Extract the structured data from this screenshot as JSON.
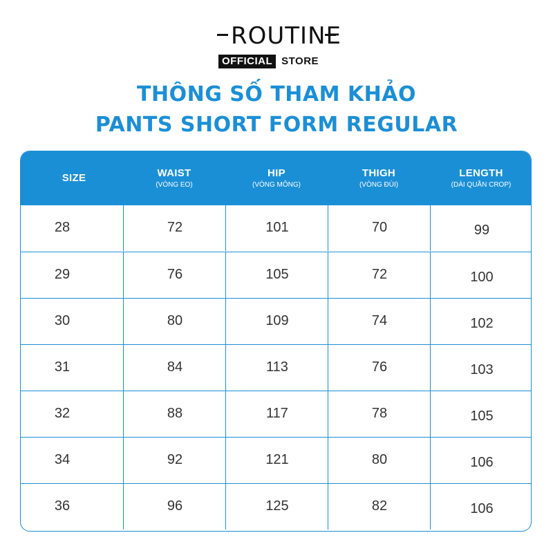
{
  "logo": {
    "wordmark": "ROUTINE",
    "badge": "OFFICIAL",
    "store": "STORE"
  },
  "title": {
    "line1": "THÔNG SỐ THAM KHẢO",
    "line2": "PANTS SHORT FORM REGULAR"
  },
  "table": {
    "headers": [
      {
        "label": "SIZE",
        "sub": ""
      },
      {
        "label": "WAIST",
        "sub": "(VÒNG EO)"
      },
      {
        "label": "HIP",
        "sub": "(VÒNG MÔNG)"
      },
      {
        "label": "THIGH",
        "sub": "(VÒNG ĐÙI)"
      },
      {
        "label": "LENGTH",
        "sub": "(DÀI QUẦN CROP)"
      }
    ],
    "rows": [
      [
        "28",
        "72",
        "101",
        "70",
        "99"
      ],
      [
        "29",
        "76",
        "105",
        "72",
        "100"
      ],
      [
        "30",
        "80",
        "109",
        "74",
        "102"
      ],
      [
        "31",
        "84",
        "113",
        "76",
        "103"
      ],
      [
        "32",
        "88",
        "117",
        "78",
        "105"
      ],
      [
        "34",
        "92",
        "121",
        "80",
        "106"
      ],
      [
        "36",
        "96",
        "125",
        "82",
        "106"
      ]
    ]
  },
  "colors": {
    "accent": "#1b8fd6",
    "text": "#333333",
    "logo": "#111111"
  }
}
